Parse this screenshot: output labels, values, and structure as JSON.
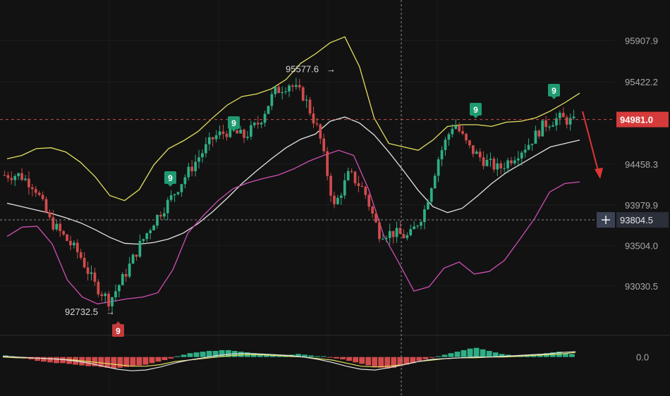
{
  "chart_data": [
    {
      "type": "candlestick",
      "y_ticks": [
        "95907.9",
        "95422.2",
        "94458.3",
        "93979.9",
        "93504.0",
        "93030.5"
      ],
      "ylim": [
        92500,
        96200
      ],
      "current_price": {
        "label": "94981.0",
        "value": 94981.0
      },
      "crosshair_price": {
        "label": "93804.5",
        "value": 93804.5
      },
      "annotations": [
        {
          "label": "95577.6",
          "value": 95577.6
        },
        {
          "label": "92732.5",
          "value": 92732.5
        }
      ],
      "td_markers": [
        {
          "label": "9",
          "position": "below",
          "color": "#c43b3b"
        },
        {
          "label": "9",
          "position": "above",
          "color": "#1f9a72"
        },
        {
          "label": "9",
          "position": "above",
          "color": "#1f9a72"
        },
        {
          "label": "9",
          "position": "above",
          "color": "#1f9a72"
        },
        {
          "label": "9",
          "position": "above",
          "color": "#1f9a72"
        }
      ],
      "series": [
        {
          "color": "#e3e3e3",
          "values": [
            94000,
            93960,
            93920,
            93880,
            93830,
            93770,
            93690,
            93600,
            93530,
            93520,
            93540,
            93580,
            93650,
            93760,
            93900,
            94060,
            94230,
            94380,
            94520,
            94650,
            94750,
            94810,
            94960,
            95010,
            94940,
            94800,
            94600,
            94380,
            94150,
            93960,
            93890,
            93940,
            94080,
            94230,
            94360,
            94460,
            94560,
            94660,
            94700,
            94740
          ]
        },
        {
          "color": "#e3e060",
          "values": [
            94520,
            94560,
            94640,
            94650,
            94600,
            94480,
            94310,
            94090,
            94030,
            94160,
            94450,
            94640,
            94730,
            94840,
            95000,
            95150,
            95250,
            95280,
            95340,
            95450,
            95640,
            95750,
            95880,
            95950,
            95600,
            95000,
            94700,
            94660,
            94620,
            94740,
            94900,
            94920,
            94920,
            94900,
            94950,
            94960,
            95000,
            95080,
            95180,
            95290
          ]
        },
        {
          "color": "#d04fb3",
          "values": [
            93610,
            93720,
            93730,
            93520,
            93100,
            92900,
            92820,
            92850,
            92880,
            92900,
            92950,
            93220,
            93650,
            93850,
            94030,
            94170,
            94240,
            94290,
            94330,
            94400,
            94490,
            94560,
            94620,
            94560,
            94160,
            93620,
            93300,
            92970,
            93020,
            93240,
            93310,
            93170,
            93200,
            93330,
            93570,
            93820,
            94130,
            94230,
            94250
          ]
        }
      ]
    },
    {
      "type": "bar",
      "y_ticks": [
        "0.0"
      ],
      "ylim": [
        -40,
        20
      ],
      "colors": {
        "positive": "#2fae86",
        "negative": "#d14b4b"
      },
      "values": [
        2,
        1,
        -1,
        -2,
        -3,
        -5,
        -6,
        -7,
        -8,
        -8,
        -9,
        -10,
        -11,
        -12,
        -12,
        -13,
        -14,
        -15,
        -14,
        -13,
        -12,
        -11,
        -10,
        -8,
        -6,
        -4,
        -2,
        1,
        3,
        5,
        6,
        7,
        8,
        8,
        9,
        9,
        8,
        7,
        6,
        5,
        4,
        3,
        2,
        1,
        2,
        3,
        4,
        3,
        2,
        1,
        1,
        -1,
        -2,
        -3,
        -5,
        -7,
        -9,
        -11,
        -13,
        -14,
        -15,
        -14,
        -12,
        -10,
        -8,
        -5,
        -3,
        -1,
        1,
        3,
        5,
        7,
        9,
        11,
        12,
        10,
        8,
        6,
        4,
        3,
        2,
        1,
        2,
        3,
        4,
        5,
        6,
        7,
        5,
        4
      ],
      "series": [
        {
          "color": "#e3e060",
          "values": [
            0,
            -1,
            -1,
            -2,
            -3,
            -4,
            -6,
            -8,
            -10,
            -12,
            -12,
            -10,
            -6,
            -4,
            -2,
            0,
            2,
            3,
            3,
            2,
            1,
            0,
            -2,
            -4,
            -8,
            -12,
            -13,
            -12,
            -10,
            -6,
            -4,
            -2,
            -1,
            -1,
            0,
            0,
            1,
            2,
            3,
            4,
            6
          ]
        },
        {
          "color": "#e3e3e3",
          "values": [
            1,
            0,
            -1,
            -2,
            -3,
            -5,
            -8,
            -12,
            -16,
            -18,
            -17,
            -13,
            -8,
            -4,
            -1,
            2,
            4,
            5,
            4,
            3,
            2,
            0,
            -3,
            -7,
            -12,
            -16,
            -17,
            -14,
            -10,
            -6,
            -3,
            -2,
            -1,
            0,
            0,
            1,
            2,
            3,
            4,
            6,
            7
          ]
        }
      ]
    }
  ]
}
